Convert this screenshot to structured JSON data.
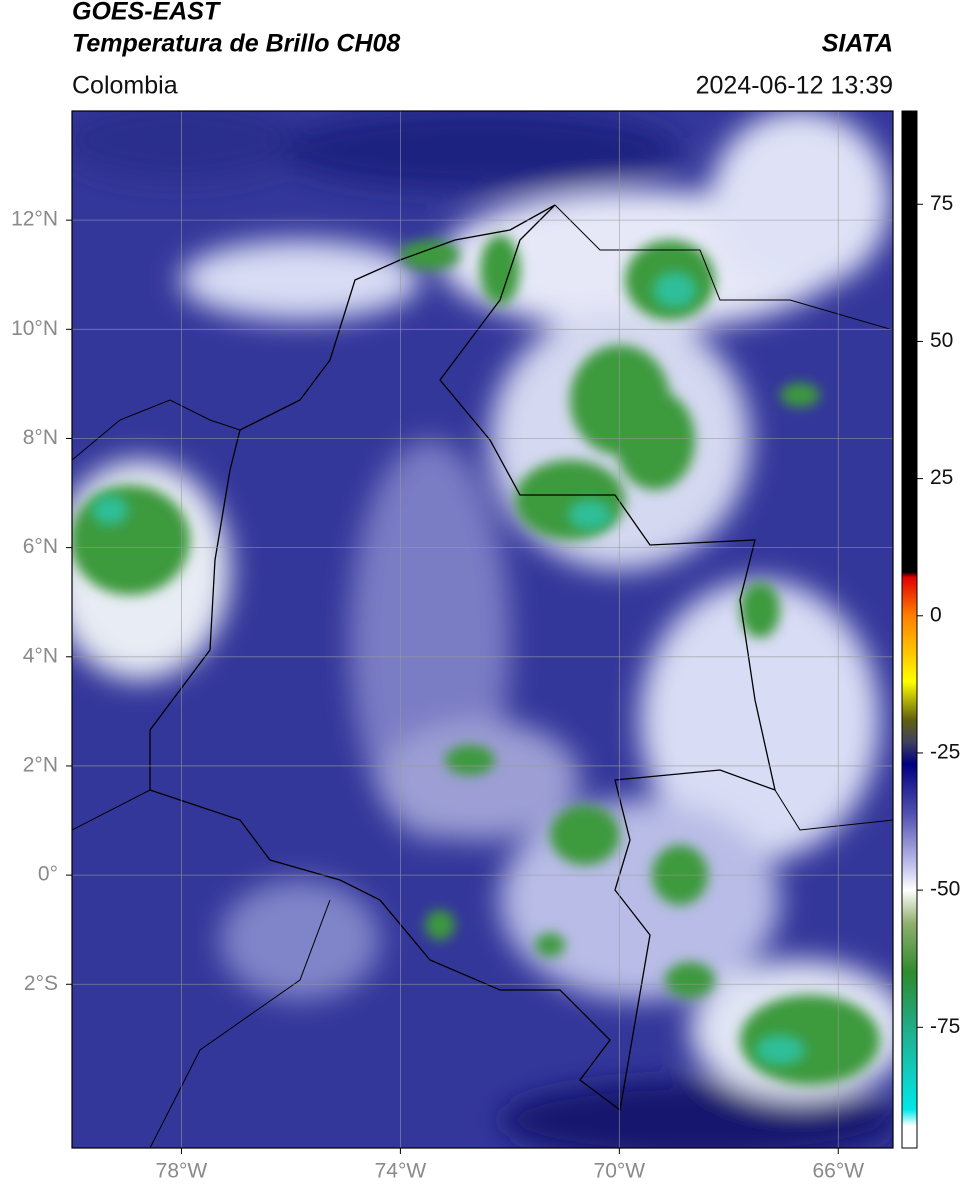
{
  "header": {
    "title": "GOES-EAST",
    "subtitle": "Temperatura de Brillo CH08",
    "source": "SIATA",
    "region": "Colombia",
    "datetime": "2024-06-12 13:39"
  },
  "map": {
    "xlim": [
      -80,
      -65
    ],
    "ylim": [
      -5,
      14
    ],
    "grid": true,
    "xticks": [
      {
        "value": -78,
        "label": "78°W"
      },
      {
        "value": -74,
        "label": "74°W"
      },
      {
        "value": -70,
        "label": "70°W"
      },
      {
        "value": -66,
        "label": "66°W"
      }
    ],
    "yticks": [
      {
        "value": 12,
        "label": "12°N"
      },
      {
        "value": 10,
        "label": "10°N"
      },
      {
        "value": 8,
        "label": "8°N"
      },
      {
        "value": 6,
        "label": "6°N"
      },
      {
        "value": 4,
        "label": "4°N"
      },
      {
        "value": 2,
        "label": "2°N"
      },
      {
        "value": 0,
        "label": "0°"
      },
      {
        "value": -2,
        "label": "2°S"
      }
    ]
  },
  "colorbar": {
    "lim": [
      -97,
      92
    ],
    "ticks": [
      75,
      50,
      25,
      0,
      -25,
      -50,
      -75
    ],
    "stops": [
      {
        "value": 92,
        "color": "#000000"
      },
      {
        "value": 8,
        "color": "#000000"
      },
      {
        "value": 7,
        "color": "#e00000"
      },
      {
        "value": 0,
        "color": "#ff8000"
      },
      {
        "value": -12,
        "color": "#ffff00"
      },
      {
        "value": -19,
        "color": "#606010"
      },
      {
        "value": -23,
        "color": "#404060"
      },
      {
        "value": -27,
        "color": "#000080"
      },
      {
        "value": -36,
        "color": "#5050b0"
      },
      {
        "value": -46,
        "color": "#c8c8f0"
      },
      {
        "value": -50,
        "color": "#ffffff"
      },
      {
        "value": -56,
        "color": "#90b070"
      },
      {
        "value": -65,
        "color": "#2e8b2e"
      },
      {
        "value": -76,
        "color": "#20b090"
      },
      {
        "value": -90,
        "color": "#00e8e8"
      },
      {
        "value": -93,
        "color": "#ffffff"
      },
      {
        "value": -97,
        "color": "#ffffff"
      }
    ]
  }
}
